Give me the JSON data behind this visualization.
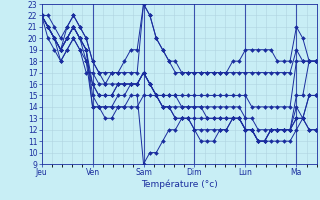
{
  "xlabel": "Température (°c)",
  "background_color": "#c8eef5",
  "grid_color": "#b0d4e0",
  "line_color": "#1a2d9e",
  "marker_color": "#1a2d9e",
  "ylim": [
    9,
    23
  ],
  "yticks": [
    9,
    10,
    11,
    12,
    13,
    14,
    15,
    16,
    17,
    18,
    19,
    20,
    21,
    22,
    23
  ],
  "day_labels": [
    "Jeu",
    "Ven",
    "Sam",
    "Dim",
    "Lun",
    "Ma"
  ],
  "day_x": [
    0,
    40,
    80,
    120,
    160,
    200
  ],
  "total_points": 216,
  "series": [
    [
      0,
      22,
      5,
      22,
      10,
      21,
      15,
      20,
      20,
      21,
      25,
      22,
      30,
      21,
      35,
      20,
      40,
      18,
      45,
      17,
      50,
      16,
      55,
      17,
      60,
      17,
      65,
      18,
      70,
      19,
      75,
      19,
      80,
      23,
      85,
      22,
      90,
      20,
      95,
      19,
      100,
      18,
      105,
      18,
      110,
      17,
      115,
      17,
      120,
      17,
      125,
      17,
      130,
      17,
      135,
      17,
      140,
      17,
      145,
      17,
      150,
      18,
      155,
      18,
      160,
      19,
      165,
      19,
      170,
      19,
      175,
      19,
      180,
      19,
      185,
      18,
      190,
      18,
      195,
      18,
      200,
      21,
      205,
      20,
      210,
      18,
      215,
      18
    ],
    [
      0,
      22,
      5,
      21,
      10,
      20,
      15,
      19,
      20,
      20,
      25,
      21,
      30,
      20,
      35,
      19,
      40,
      15,
      45,
      14,
      50,
      14,
      55,
      14,
      60,
      15,
      65,
      15,
      70,
      16,
      75,
      16,
      80,
      17,
      85,
      16,
      90,
      15,
      95,
      14,
      100,
      14,
      105,
      13,
      110,
      13,
      115,
      13,
      120,
      12,
      125,
      12,
      130,
      12,
      135,
      12,
      140,
      12,
      145,
      12,
      150,
      13,
      155,
      13,
      160,
      12,
      165,
      12,
      170,
      11,
      175,
      11,
      180,
      12,
      185,
      12,
      190,
      12,
      195,
      12,
      200,
      13,
      205,
      13,
      210,
      15,
      215,
      15
    ],
    [
      0,
      22,
      5,
      21,
      10,
      20,
      15,
      19,
      20,
      20,
      25,
      21,
      30,
      20,
      35,
      18,
      40,
      16,
      45,
      15,
      50,
      15,
      55,
      15,
      60,
      16,
      65,
      16,
      70,
      16,
      75,
      16,
      80,
      17,
      85,
      16,
      90,
      15,
      95,
      14,
      100,
      14,
      105,
      13,
      110,
      13,
      115,
      13,
      120,
      12,
      125,
      11,
      130,
      11,
      135,
      11,
      140,
      12,
      145,
      12,
      150,
      13,
      155,
      13,
      160,
      12,
      165,
      12,
      170,
      11,
      175,
      11,
      180,
      12,
      185,
      12,
      190,
      12,
      195,
      12,
      200,
      14,
      205,
      13,
      210,
      15,
      215,
      15
    ],
    [
      0,
      22,
      5,
      20,
      10,
      19,
      15,
      18,
      20,
      19,
      25,
      20,
      30,
      19,
      35,
      18,
      40,
      14,
      45,
      14,
      50,
      13,
      55,
      13,
      60,
      14,
      65,
      14,
      70,
      15,
      75,
      15,
      80,
      9,
      85,
      10,
      90,
      10,
      95,
      11,
      100,
      12,
      105,
      12,
      110,
      13,
      115,
      13,
      120,
      13,
      125,
      13,
      130,
      13,
      135,
      13,
      140,
      13,
      145,
      13,
      150,
      13,
      155,
      13,
      160,
      12,
      165,
      12,
      170,
      11,
      175,
      11,
      180,
      12,
      185,
      12,
      190,
      12,
      195,
      12,
      200,
      13,
      205,
      13,
      210,
      12,
      215,
      12
    ],
    [
      0,
      22,
      5,
      21,
      10,
      20,
      15,
      19,
      20,
      21,
      25,
      22,
      30,
      21,
      35,
      20,
      40,
      18,
      45,
      17,
      50,
      17,
      55,
      17,
      60,
      17,
      65,
      17,
      70,
      17,
      75,
      17,
      80,
      23,
      85,
      22,
      90,
      20,
      95,
      19,
      100,
      18,
      105,
      17,
      110,
      17,
      115,
      17,
      120,
      17,
      125,
      17,
      130,
      17,
      135,
      17,
      140,
      17,
      145,
      17,
      150,
      17,
      155,
      17,
      160,
      17,
      165,
      17,
      170,
      17,
      175,
      17,
      180,
      17,
      185,
      17,
      190,
      17,
      195,
      17,
      200,
      19,
      205,
      18,
      210,
      18,
      215,
      18
    ],
    [
      0,
      22,
      5,
      21,
      10,
      20,
      15,
      18,
      20,
      19,
      25,
      20,
      30,
      19,
      35,
      17,
      40,
      17,
      45,
      16,
      50,
      16,
      55,
      16,
      60,
      16,
      65,
      16,
      70,
      16,
      75,
      16,
      80,
      17,
      85,
      16,
      90,
      15,
      95,
      14,
      100,
      14,
      105,
      14,
      110,
      14,
      115,
      14,
      120,
      14,
      125,
      14,
      130,
      14,
      135,
      14,
      140,
      14,
      145,
      14,
      150,
      14,
      155,
      14,
      160,
      13,
      165,
      13,
      170,
      12,
      175,
      12,
      180,
      12,
      185,
      12,
      190,
      12,
      195,
      12,
      200,
      15,
      205,
      15,
      210,
      18,
      215,
      18
    ],
    [
      0,
      22,
      5,
      21,
      10,
      20,
      15,
      19,
      20,
      20,
      25,
      21,
      30,
      20,
      35,
      19,
      40,
      16,
      45,
      15,
      50,
      15,
      55,
      15,
      60,
      16,
      65,
      16,
      70,
      16,
      75,
      16,
      80,
      17,
      85,
      16,
      90,
      15,
      95,
      15,
      100,
      15,
      105,
      15,
      110,
      15,
      115,
      15,
      120,
      15,
      125,
      15,
      130,
      15,
      135,
      15,
      140,
      15,
      145,
      15,
      150,
      15,
      155,
      15,
      160,
      15,
      165,
      14,
      170,
      14,
      175,
      14,
      180,
      14,
      185,
      14,
      190,
      14,
      195,
      14,
      200,
      18,
      205,
      18,
      210,
      18,
      215,
      18
    ],
    [
      0,
      22,
      5,
      21,
      10,
      20,
      15,
      19,
      20,
      20,
      25,
      21,
      30,
      20,
      35,
      19,
      40,
      14,
      45,
      14,
      50,
      14,
      55,
      14,
      60,
      14,
      65,
      14,
      70,
      14,
      75,
      14,
      80,
      15,
      85,
      15,
      90,
      15,
      95,
      15,
      100,
      15,
      105,
      15,
      110,
      14,
      115,
      14,
      120,
      14,
      125,
      14,
      130,
      13,
      135,
      13,
      140,
      13,
      145,
      13,
      150,
      13,
      155,
      13,
      160,
      12,
      165,
      12,
      170,
      11,
      175,
      11,
      180,
      11,
      185,
      11,
      190,
      11,
      195,
      11,
      200,
      12,
      205,
      13,
      210,
      12,
      215,
      12
    ]
  ]
}
